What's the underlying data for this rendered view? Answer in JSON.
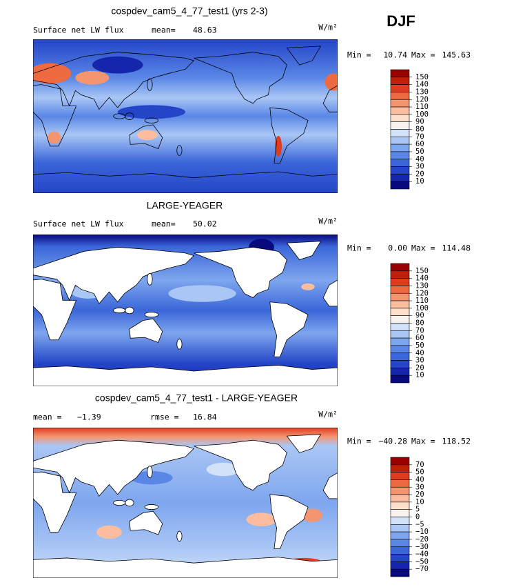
{
  "season": "DJF",
  "colorbar_colors": [
    "#990000",
    "#c0200a",
    "#dd3c1e",
    "#ee6a40",
    "#f59570",
    "#fbbd9e",
    "#fde0cc",
    "#f7f2ee",
    "#d2e2f9",
    "#a9c6f5",
    "#7ea6ee",
    "#5a87e6",
    "#3a66d9",
    "#2445c8",
    "#1427ac",
    "#08087f"
  ],
  "panels": [
    {
      "title": "cospdev_cam5_4_77_test1 (yrs 2-3)",
      "left_text": "Surface net LW flux",
      "stat_label": "mean=",
      "stat_value": "48.63",
      "units": "W/m²",
      "min_label": "Min =",
      "min": "10.74",
      "max_label": "Max =",
      "max": "145.63",
      "colorbar_ticks": [
        150,
        140,
        130,
        120,
        110,
        100,
        90,
        80,
        70,
        60,
        50,
        40,
        30,
        20,
        10
      ]
    },
    {
      "title": "LARGE-YEAGER",
      "left_text": "Surface net LW flux",
      "stat_label": "mean=",
      "stat_value": "50.02",
      "units": "W/m²",
      "min_label": "Min =",
      "min": "0.00",
      "max_label": "Max =",
      "max": "114.48",
      "colorbar_ticks": [
        150,
        140,
        130,
        120,
        110,
        100,
        90,
        80,
        70,
        60,
        50,
        40,
        30,
        20,
        10
      ]
    },
    {
      "title": "cospdev_cam5_4_77_test1 - LARGE-YEAGER",
      "left_text": "mean =",
      "left_value": "−1.39",
      "stat_label": "rmse =",
      "stat_value": "16.84",
      "units": "W/m²",
      "min_label": "Min =",
      "min": "−40.28",
      "max_label": "Max =",
      "max": "118.52",
      "colorbar_ticks": [
        70,
        50,
        40,
        30,
        20,
        10,
        5,
        0,
        {
          "value": -5,
          "label": "−5"
        },
        {
          "value": -10,
          "label": "−10"
        },
        {
          "value": -20,
          "label": "−20"
        },
        {
          "value": -30,
          "label": "−30"
        },
        {
          "value": -40,
          "label": "−40"
        },
        {
          "value": -50,
          "label": "−50"
        },
        {
          "value": -70,
          "label": "−70"
        }
      ]
    }
  ]
}
